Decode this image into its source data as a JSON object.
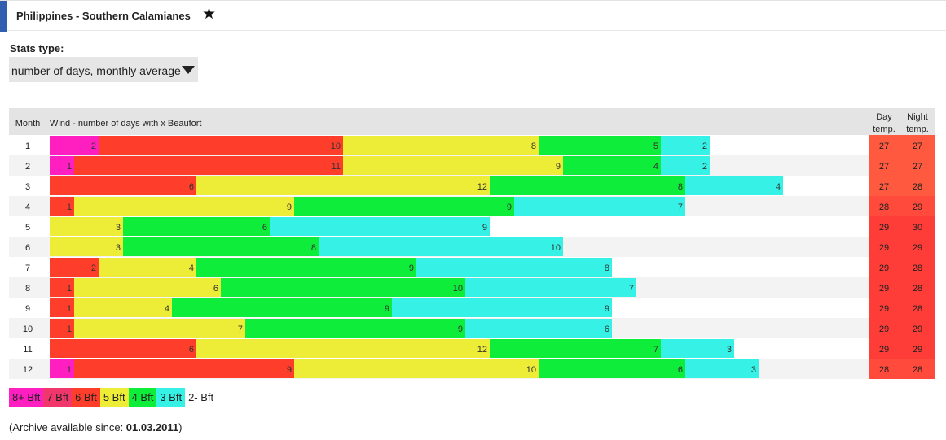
{
  "header": {
    "title": "Philippines - Southern Calamianes",
    "star": "★"
  },
  "stats": {
    "label": "Stats type:",
    "selected": "number of days, monthly average"
  },
  "chart_data": {
    "type": "bar",
    "stacked": true,
    "orientation": "horizontal",
    "title": "Wind - number of days with x Beaufort",
    "column_headers": {
      "month": "Month",
      "wind": "Wind - number of days with x Beaufort",
      "day": [
        "Day",
        "temp."
      ],
      "night": [
        "Night",
        "temp."
      ]
    },
    "categories": [
      "1",
      "2",
      "3",
      "4",
      "5",
      "6",
      "7",
      "8",
      "9",
      "10",
      "11",
      "12"
    ],
    "series": [
      {
        "name": "8+ Bft",
        "color": "#ff1fc1",
        "values": [
          2,
          1,
          0,
          0,
          0,
          0,
          0,
          0,
          0,
          0,
          0,
          1
        ]
      },
      {
        "name": "7 Bft",
        "color": "#f0366a",
        "values": [
          0,
          0,
          0,
          0,
          0,
          0,
          0,
          0,
          0,
          0,
          0,
          0
        ]
      },
      {
        "name": "6 Bft",
        "color": "#ff3d2b",
        "values": [
          10,
          11,
          6,
          1,
          0,
          0,
          2,
          1,
          1,
          1,
          6,
          9
        ]
      },
      {
        "name": "5 Bft",
        "color": "#eded38",
        "values": [
          8,
          9,
          12,
          9,
          3,
          3,
          4,
          6,
          4,
          7,
          12,
          10
        ]
      },
      {
        "name": "4 Bft",
        "color": "#0ded3a",
        "values": [
          5,
          4,
          8,
          9,
          6,
          8,
          9,
          10,
          9,
          9,
          7,
          6
        ]
      },
      {
        "name": "3 Bft",
        "color": "#36f2e6",
        "values": [
          2,
          2,
          4,
          7,
          9,
          10,
          8,
          7,
          9,
          6,
          3,
          3
        ]
      }
    ],
    "day_temp": [
      27,
      27,
      27,
      28,
      29,
      29,
      29,
      29,
      29,
      29,
      29,
      28
    ],
    "night_temp": [
      27,
      27,
      28,
      29,
      30,
      29,
      28,
      28,
      28,
      29,
      29,
      28
    ],
    "scale": {
      "days_max": 31
    }
  },
  "legend": [
    {
      "label": "8+ Bft",
      "color": "#ff1fc1"
    },
    {
      "label": "7 Bft",
      "color": "#f0366a"
    },
    {
      "label": "6 Bft",
      "color": "#ff3d2b"
    },
    {
      "label": "5 Bft",
      "color": "#eded38"
    },
    {
      "label": "4 Bft",
      "color": "#0ded3a"
    },
    {
      "label": "3 Bft",
      "color": "#36f2e6"
    },
    {
      "label": "2- Bft",
      "color": "#ffffff"
    }
  ],
  "archive": {
    "prefix": "(Archive available since: ",
    "date": "01.03.2011",
    "suffix": ")"
  }
}
